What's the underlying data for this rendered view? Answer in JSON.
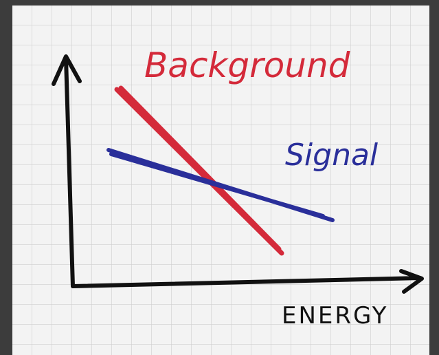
{
  "diagram": {
    "curves": [
      {
        "label": "Background",
        "color": "#d42a3a"
      },
      {
        "label": "Signal",
        "color": "#2a2f9a"
      }
    ],
    "x_axis_label": "ENERGY"
  }
}
